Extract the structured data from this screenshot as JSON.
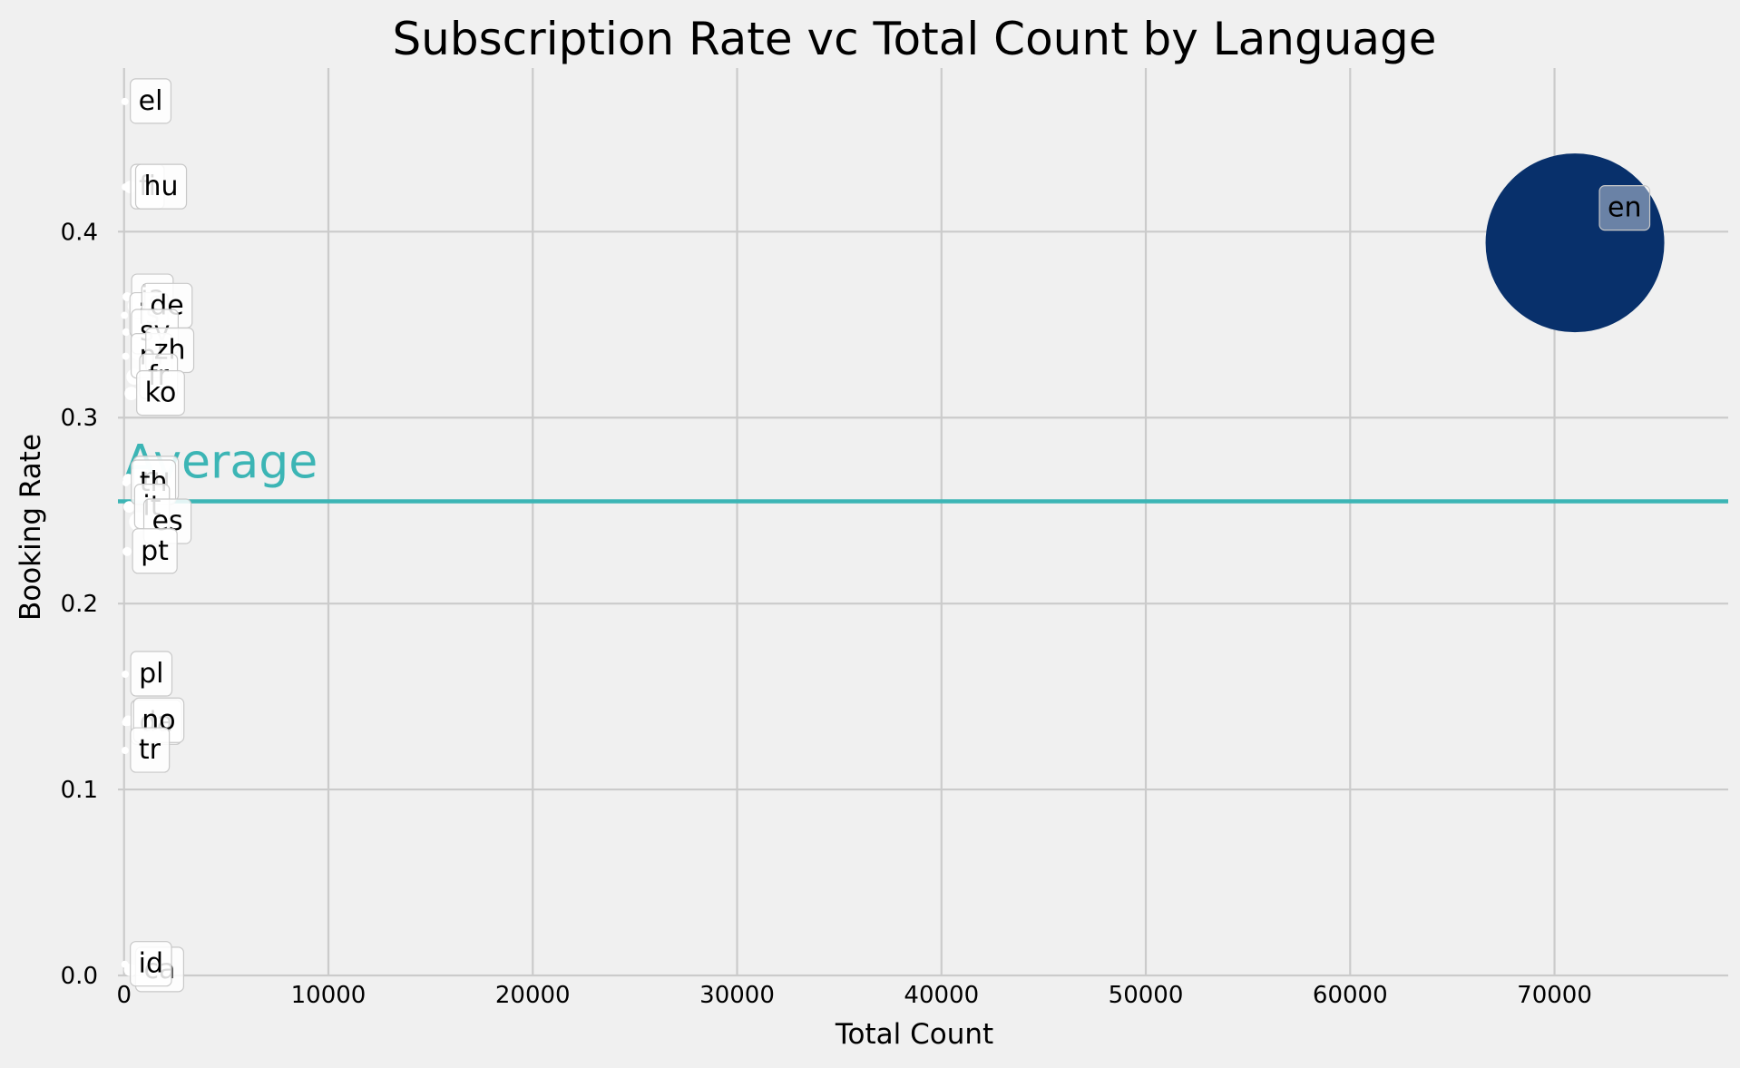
{
  "chart_data": {
    "type": "scatter",
    "title": "Subscription Rate vc Total Count by Language",
    "xlabel": "Total Count",
    "ylabel": "Booking Rate",
    "xlim": [
      -300,
      78500
    ],
    "ylim": [
      0.0,
      0.488
    ],
    "xticks": [
      0,
      10000,
      20000,
      30000,
      40000,
      50000,
      60000,
      70000
    ],
    "yticks": [
      0.0,
      0.1,
      0.2,
      0.3,
      0.4
    ],
    "grid": true,
    "average": {
      "label": "Average",
      "value": 0.255,
      "color": "#3cb5b5"
    },
    "bubble_color": "#08306b",
    "points": [
      {
        "label": "en",
        "x": 71000,
        "y": 0.394
      },
      {
        "label": "el",
        "x": 40,
        "y": 0.47
      },
      {
        "label": "fi",
        "x": 60,
        "y": 0.424
      },
      {
        "label": "hu",
        "x": 300,
        "y": 0.424
      },
      {
        "label": "ja",
        "x": 150,
        "y": 0.365
      },
      {
        "label": "is",
        "x": 20,
        "y": 0.355
      },
      {
        "label": "de",
        "x": 600,
        "y": 0.36
      },
      {
        "label": "sv",
        "x": 100,
        "y": 0.346
      },
      {
        "label": "nl",
        "x": 80,
        "y": 0.333
      },
      {
        "label": "zh",
        "x": 800,
        "y": 0.336
      },
      {
        "label": "fr",
        "x": 500,
        "y": 0.322
      },
      {
        "label": "ko",
        "x": 350,
        "y": 0.313
      },
      {
        "label": "ru",
        "x": 200,
        "y": 0.267
      },
      {
        "label": "th",
        "x": 90,
        "y": 0.265
      },
      {
        "label": "it",
        "x": 250,
        "y": 0.252
      },
      {
        "label": "es",
        "x": 700,
        "y": 0.244
      },
      {
        "label": "pt",
        "x": 150,
        "y": 0.228
      },
      {
        "label": "pl",
        "x": 60,
        "y": 0.162
      },
      {
        "label": "da",
        "x": 80,
        "y": 0.136
      },
      {
        "label": "no",
        "x": 200,
        "y": 0.137
      },
      {
        "label": "tr",
        "x": 50,
        "y": 0.121
      },
      {
        "label": "ca",
        "x": 300,
        "y": 0.003
      },
      {
        "label": "id",
        "x": 40,
        "y": 0.006
      }
    ]
  }
}
